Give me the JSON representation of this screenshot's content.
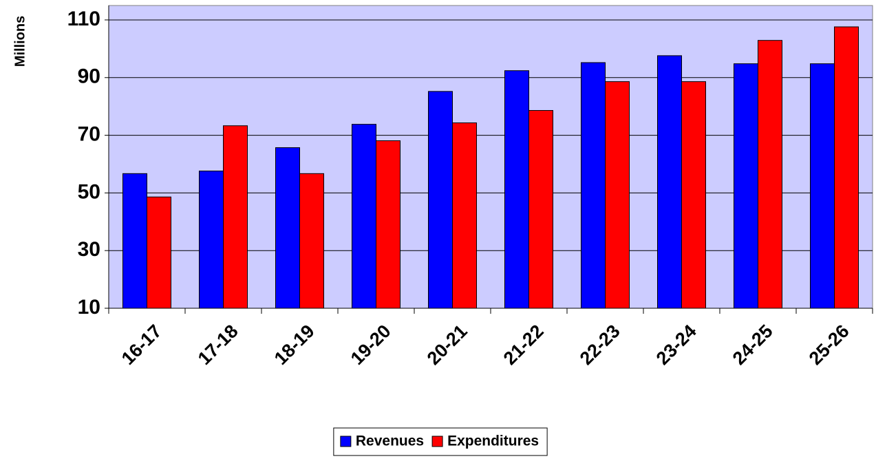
{
  "chart_data": {
    "type": "bar",
    "y_label": "Millions",
    "categories": [
      "16-17",
      "17-18",
      "18-19",
      "19-20",
      "20-21",
      "21-22",
      "22-23",
      "23-24",
      "24-25",
      "25-26"
    ],
    "series": [
      {
        "name": "Revenues",
        "color": "#0000ff",
        "values": [
          56.7,
          57.6,
          65.7,
          73.8,
          85.2,
          92.4,
          95.2,
          97.6,
          94.8,
          94.8
        ]
      },
      {
        "name": "Expenditures",
        "color": "#ff0000",
        "values": [
          48.6,
          73.3,
          56.7,
          68.1,
          74.3,
          78.6,
          88.6,
          88.6,
          102.9,
          107.6
        ]
      }
    ],
    "ylim": [
      10,
      115
    ],
    "yticks": [
      10,
      30,
      50,
      70,
      90,
      110
    ],
    "grid": true,
    "plot_background": "#ccccff",
    "legend": "bottom"
  }
}
